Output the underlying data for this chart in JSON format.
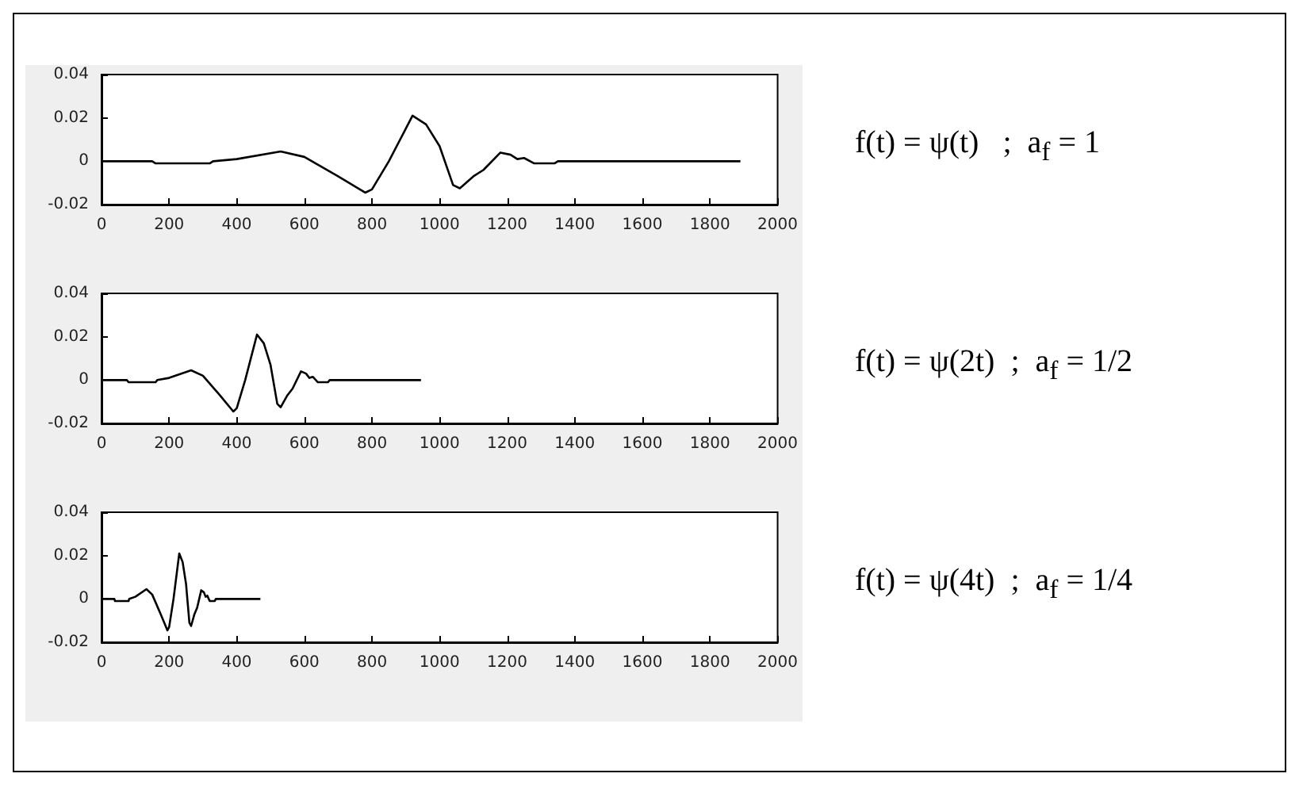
{
  "chart_data": [
    {
      "type": "line",
      "annotations": [
        "f(t) = ψ(t)   ;  a$_{f}$ = 1"
      ],
      "xlim": [
        0,
        2000
      ],
      "xticks": [
        0,
        200,
        400,
        600,
        800,
        1000,
        1200,
        1400,
        1600,
        1800,
        2000
      ],
      "ylim": [
        -0.02,
        0.04
      ],
      "yticks": [
        -0.02,
        0,
        0.02,
        0.04
      ],
      "series": [
        {
          "color": "#000000",
          "x": [
            0,
            150,
            160,
            320,
            330,
            400,
            530,
            600,
            700,
            780,
            800,
            850,
            920,
            960,
            1000,
            1040,
            1060,
            1100,
            1130,
            1180,
            1210,
            1230,
            1250,
            1280,
            1340,
            1350,
            1890
          ],
          "values": [
            0,
            0,
            -0.001,
            -0.001,
            0,
            0.001,
            0.0045,
            0.002,
            -0.007,
            -0.0145,
            -0.013,
            0,
            0.021,
            0.017,
            0.007,
            -0.011,
            -0.0125,
            -0.007,
            -0.004,
            0.004,
            0.003,
            0.001,
            0.0015,
            -0.001,
            -0.001,
            0,
            0
          ]
        }
      ]
    },
    {
      "type": "line",
      "annotations": [
        "f(t) = ψ(2t)  ;  a$_{f}$ = 1/2"
      ],
      "xlim": [
        0,
        2000
      ],
      "xticks": [
        0,
        200,
        400,
        600,
        800,
        1000,
        1200,
        1400,
        1600,
        1800,
        2000
      ],
      "ylim": [
        -0.02,
        0.04
      ],
      "yticks": [
        -0.02,
        0,
        0.02,
        0.04
      ],
      "series": [
        {
          "color": "#000000",
          "x": [
            0,
            75,
            80,
            160,
            165,
            200,
            265,
            300,
            350,
            390,
            400,
            425,
            460,
            480,
            500,
            520,
            530,
            550,
            565,
            590,
            605,
            615,
            625,
            640,
            670,
            675,
            945
          ],
          "values": [
            0,
            0,
            -0.001,
            -0.001,
            0,
            0.001,
            0.0045,
            0.002,
            -0.007,
            -0.0145,
            -0.013,
            0,
            0.021,
            0.017,
            0.007,
            -0.011,
            -0.0125,
            -0.007,
            -0.004,
            0.004,
            0.003,
            0.001,
            0.0015,
            -0.001,
            -0.001,
            0,
            0
          ]
        }
      ]
    },
    {
      "type": "line",
      "annotations": [
        "f(t) = ψ(4t)  ;  a$_{f}$ = 1/4"
      ],
      "xlim": [
        0,
        2000
      ],
      "xticks": [
        0,
        200,
        400,
        600,
        800,
        1000,
        1200,
        1400,
        1600,
        1800,
        2000
      ],
      "ylim": [
        -0.02,
        0.04
      ],
      "yticks": [
        -0.02,
        0,
        0.02,
        0.04
      ],
      "series": [
        {
          "color": "#000000",
          "x": [
            0,
            38,
            40,
            80,
            82,
            100,
            133,
            150,
            175,
            195,
            200,
            213,
            230,
            240,
            250,
            260,
            265,
            275,
            283,
            295,
            303,
            308,
            313,
            320,
            335,
            338,
            470
          ],
          "values": [
            0,
            0,
            -0.001,
            -0.001,
            0,
            0.001,
            0.0045,
            0.002,
            -0.007,
            -0.0145,
            -0.013,
            0,
            0.021,
            0.017,
            0.007,
            -0.011,
            -0.0125,
            -0.007,
            -0.004,
            0.004,
            0.003,
            0.001,
            0.0015,
            -0.001,
            -0.001,
            0,
            0
          ]
        }
      ]
    }
  ]
}
